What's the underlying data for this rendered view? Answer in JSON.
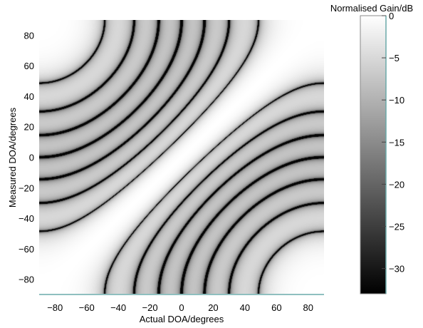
{
  "chart_data": {
    "type": "heatmap",
    "title": "",
    "xlabel": "Actual DOA/degrees",
    "ylabel": "Measured DOA/degrees",
    "xlim": [
      -90,
      90
    ],
    "ylim": [
      -90,
      90
    ],
    "x_ticks": [
      -80,
      -60,
      -40,
      -20,
      0,
      20,
      40,
      60,
      80
    ],
    "y_ticks": [
      80,
      60,
      40,
      20,
      0,
      -20,
      -40,
      -60,
      -80
    ],
    "x_tick_labels": [
      "−80",
      "−60",
      "−40",
      "−20",
      "0",
      "20",
      "40",
      "60",
      "80"
    ],
    "y_tick_labels": [
      "80",
      "60",
      "40",
      "20",
      "0",
      "−20",
      "−40",
      "−60",
      "−80"
    ],
    "z_description": "normalised beam gain vs actual and measured DOA; maximum 0 dB along the diagonal where measured equals actual, with dark sidelobe null curves symmetric about the diagonal",
    "colorbar": {
      "label": "Normalised Gain/dB",
      "range": [
        -33,
        0
      ],
      "ticks": [
        0,
        -5,
        -10,
        -15,
        -20,
        -25,
        -30
      ],
      "tick_labels": [
        "0",
        "−5",
        "−10",
        "−15",
        "−20",
        "−25",
        "−30"
      ],
      "colormap": "gray",
      "low_color": "#000000",
      "high_color": "#ffffff"
    },
    "grid": false
  }
}
